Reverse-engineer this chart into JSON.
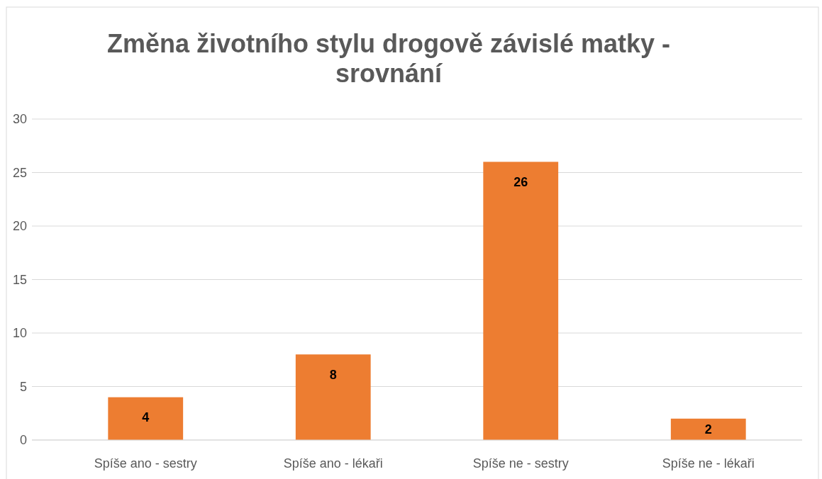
{
  "chart_data": {
    "type": "bar",
    "title": "Změna životního stylu drogově závislé matky - srovnání",
    "categories": [
      "Spíše ano - sestry",
      "Spíše ano - lékaři",
      "Spíše ne - sestry",
      "Spíše ne - lékaři"
    ],
    "values": [
      4,
      8,
      26,
      2
    ],
    "color": "#ed7d31",
    "ylim": [
      0,
      30
    ],
    "yticks": [
      0,
      5,
      10,
      15,
      20,
      25,
      30
    ],
    "grid": "y",
    "data_labels": true
  }
}
